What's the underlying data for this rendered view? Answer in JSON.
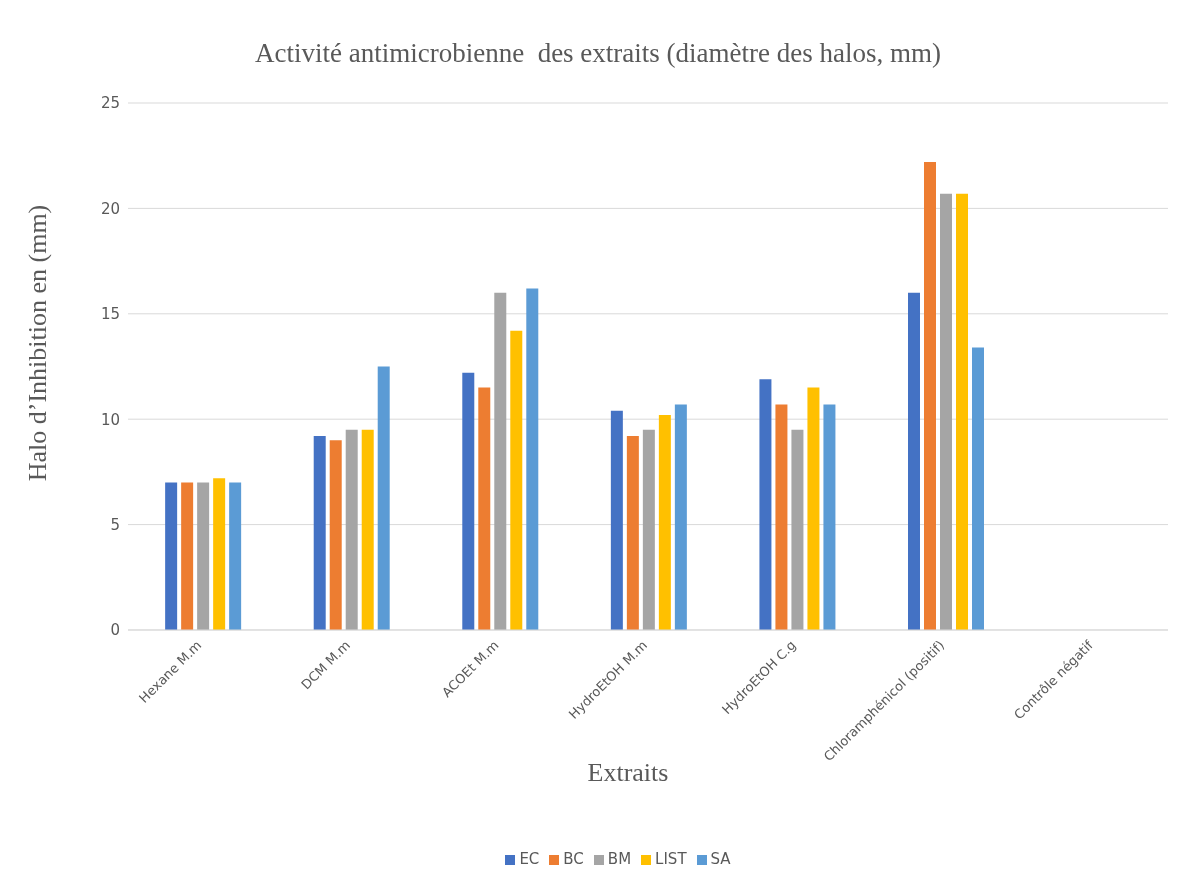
{
  "chart_data": {
    "type": "bar",
    "title": "Activité antimicrobienne  des extraits (diamètre des halos, mm)",
    "xlabel": "Extraits",
    "ylabel": "Halo d’Inhibition en (mm)",
    "categories": [
      "Hexane M.m",
      "DCM M.m",
      "ACOEt M.m",
      "HydroEtOH M.m",
      "HydroEtOH C.g",
      "Chloramphénicol (positif)",
      "Contrôle négatif"
    ],
    "series": [
      {
        "name": "EC",
        "color": "#4472c4",
        "values": [
          7,
          9.2,
          12.2,
          10.4,
          11.9,
          16,
          0
        ]
      },
      {
        "name": "BC",
        "color": "#ed7d31",
        "values": [
          7,
          9,
          11.5,
          9.2,
          10.7,
          22.2,
          0
        ]
      },
      {
        "name": "BM",
        "color": "#a5a5a5",
        "values": [
          7,
          9.5,
          16,
          9.5,
          9.5,
          20.7,
          0
        ]
      },
      {
        "name": "LIST",
        "color": "#ffc000",
        "values": [
          7.2,
          9.5,
          14.2,
          10.2,
          11.5,
          20.7,
          0
        ]
      },
      {
        "name": "SA",
        "color": "#5b9bd5",
        "values": [
          7,
          12.5,
          16.2,
          10.7,
          10.7,
          13.4,
          0
        ]
      }
    ],
    "ylim": [
      0,
      25
    ],
    "yticks": [
      0,
      5,
      10,
      15,
      20,
      25
    ],
    "grid": "y",
    "legend": "bottom"
  }
}
